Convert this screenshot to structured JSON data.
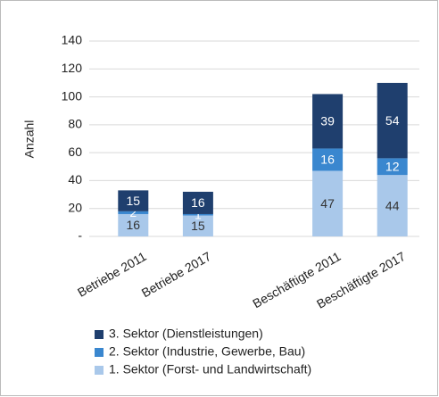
{
  "chart_data": {
    "type": "stacked_bar",
    "y_label": "Anzahl",
    "categories": [
      "Betriebe 2011",
      "Betriebe 2017",
      null,
      "Beschäftigte 2011",
      "Beschäftigte 2017"
    ],
    "series": [
      {
        "name": "1. Sektor (Forst- und Landwirtschaft)",
        "color": "#a9c8ea",
        "values": [
          16,
          15,
          null,
          47,
          44
        ]
      },
      {
        "name": "2. Sektor (Industrie, Gewerbe, Bau)",
        "color": "#3a87cf",
        "values": [
          2,
          1,
          null,
          16,
          12
        ]
      },
      {
        "name": "3. Sektor (Dienstleistungen)",
        "color": "#1f3f6e",
        "values": [
          15,
          16,
          null,
          39,
          54
        ]
      }
    ],
    "ylim": [
      0,
      140
    ],
    "yticks": [
      {
        "value": 0,
        "label": "-"
      },
      20,
      40,
      60,
      80,
      100,
      120,
      140
    ],
    "grid": true,
    "legend": "bottom"
  }
}
